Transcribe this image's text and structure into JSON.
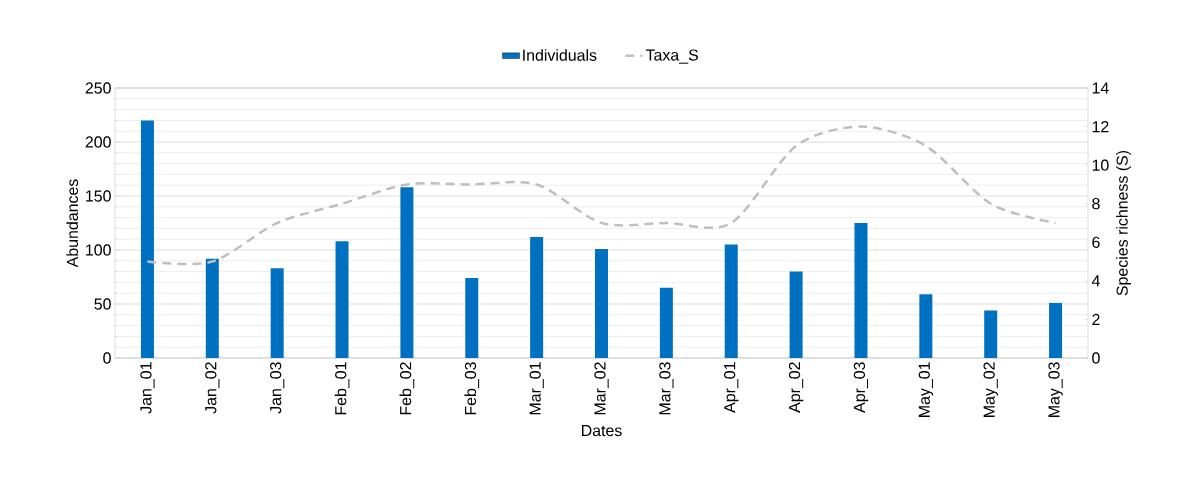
{
  "chart_data": {
    "type": "bar",
    "xlabel": "Dates",
    "ylabel": "Abundances",
    "y2label": "Species richness (S)",
    "categories": [
      "Jan_01",
      "Jan_02",
      "Jan_03",
      "Feb_01",
      "Feb_02",
      "Feb_03",
      "Mar_01",
      "Mar_02",
      "Mar_03",
      "Apr_01",
      "Apr_02",
      "Apr_03",
      "May_01",
      "May_02",
      "May_03"
    ],
    "series": [
      {
        "name": "Individuals",
        "color": "#0070c0",
        "values": [
          220,
          92,
          83,
          108,
          158,
          74,
          112,
          101,
          65,
          105,
          80,
          125,
          59,
          44,
          51
        ]
      },
      {
        "name": "Taxa_S",
        "type": "line",
        "axis": "y2",
        "color": "#bfbfbf",
        "line_style": "dashed",
        "marker": "none",
        "values": [
          5,
          5,
          7,
          8,
          9,
          9,
          9,
          7,
          7,
          7,
          11,
          12,
          11,
          8,
          7
        ]
      }
    ],
    "ylim": [
      0,
      250
    ],
    "yticks": [
      0,
      50,
      100,
      150,
      200,
      250
    ],
    "y2lim": [
      0,
      14
    ],
    "y2ticks": [
      0,
      2,
      4,
      6,
      8,
      10,
      12,
      14
    ],
    "grid": "y",
    "legend": "top"
  }
}
